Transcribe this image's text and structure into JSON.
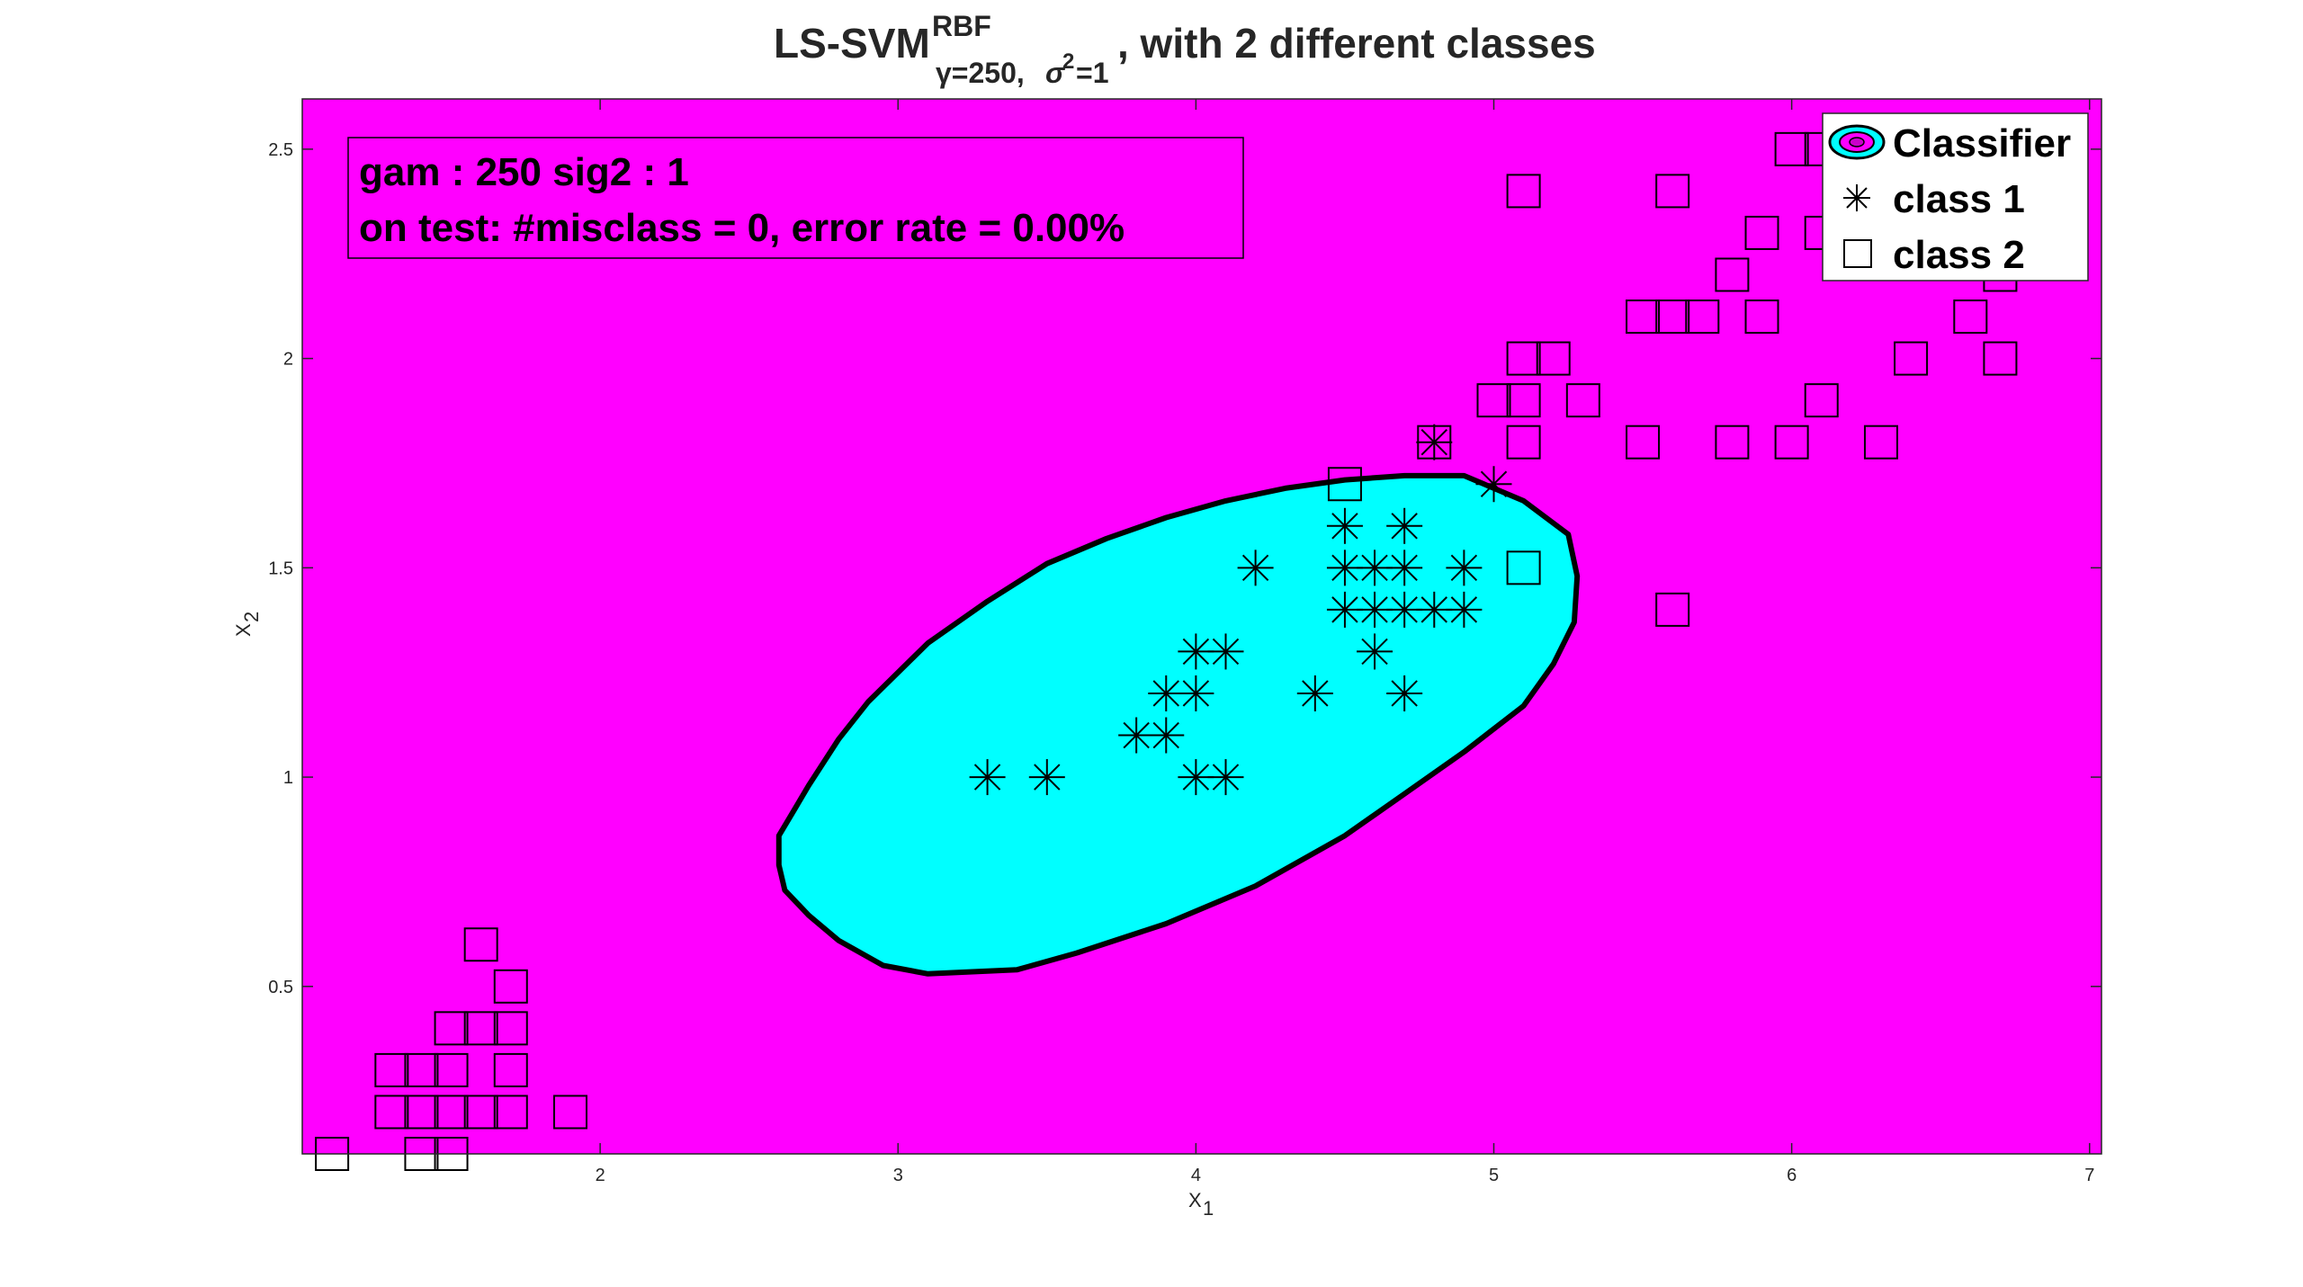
{
  "colors": {
    "background_region": "#ff00ff",
    "classifier_region": "#00ffff",
    "boundary": "#000000",
    "marker": "#000000"
  },
  "chart_data": {
    "type": "scatter",
    "title": {
      "main": "LS-SVM",
      "superscript": "RBF",
      "subscript_gamma": "γ=250,",
      "subscript_sigma": "σ",
      "subscript_sigma_exp": "2",
      "subscript_tail": "=1",
      "suffix": ", with 2 different classes"
    },
    "xlabel": "X",
    "xlabel_sub": "1",
    "ylabel": "X",
    "ylabel_sub": "2",
    "xlim": [
      1.0,
      7.04
    ],
    "ylim": [
      0.1,
      2.62
    ],
    "xticks": [
      "2",
      "3",
      "4",
      "5",
      "6",
      "7"
    ],
    "yticks": [
      "0.5",
      "1",
      "1.5",
      "2",
      "2.5"
    ],
    "info_box": {
      "line1": "gam : 250   sig2 : 1",
      "line2": "on test: #misclass = 0, error rate = 0.00%"
    },
    "legend": {
      "position": "top-right",
      "items": [
        "Classifier",
        "class 1",
        "class 2"
      ]
    },
    "decision_boundary": [
      [
        2.6,
        0.79
      ],
      [
        2.6,
        0.86
      ],
      [
        2.65,
        0.92
      ],
      [
        2.7,
        0.98
      ],
      [
        2.8,
        1.09
      ],
      [
        2.9,
        1.18
      ],
      [
        3.1,
        1.32
      ],
      [
        3.3,
        1.42
      ],
      [
        3.5,
        1.51
      ],
      [
        3.7,
        1.57
      ],
      [
        3.9,
        1.62
      ],
      [
        4.1,
        1.66
      ],
      [
        4.3,
        1.69
      ],
      [
        4.5,
        1.71
      ],
      [
        4.7,
        1.72
      ],
      [
        4.9,
        1.72
      ],
      [
        5.1,
        1.66
      ],
      [
        5.25,
        1.58
      ],
      [
        5.28,
        1.48
      ],
      [
        5.27,
        1.37
      ],
      [
        5.2,
        1.27
      ],
      [
        5.1,
        1.17
      ],
      [
        4.9,
        1.06
      ],
      [
        4.7,
        0.96
      ],
      [
        4.5,
        0.86
      ],
      [
        4.2,
        0.74
      ],
      [
        3.9,
        0.65
      ],
      [
        3.6,
        0.58
      ],
      [
        3.4,
        0.54
      ],
      [
        3.1,
        0.53
      ],
      [
        2.95,
        0.55
      ],
      [
        2.8,
        0.61
      ],
      [
        2.7,
        0.67
      ],
      [
        2.62,
        0.73
      ]
    ],
    "series": [
      {
        "name": "class 1",
        "marker": "asterisk",
        "points": [
          [
            3.3,
            1.0
          ],
          [
            3.5,
            1.0
          ],
          [
            3.8,
            1.1
          ],
          [
            3.9,
            1.1
          ],
          [
            3.9,
            1.2
          ],
          [
            4.0,
            1.2
          ],
          [
            4.0,
            1.3
          ],
          [
            4.1,
            1.3
          ],
          [
            4.0,
            1.0
          ],
          [
            4.1,
            1.0
          ],
          [
            4.2,
            1.5
          ],
          [
            4.4,
            1.2
          ],
          [
            4.5,
            1.6
          ],
          [
            4.5,
            1.5
          ],
          [
            4.5,
            1.4
          ],
          [
            4.6,
            1.5
          ],
          [
            4.6,
            1.4
          ],
          [
            4.6,
            1.3
          ],
          [
            4.7,
            1.6
          ],
          [
            4.7,
            1.5
          ],
          [
            4.7,
            1.4
          ],
          [
            4.7,
            1.2
          ],
          [
            4.8,
            1.4
          ],
          [
            4.9,
            1.5
          ],
          [
            4.9,
            1.4
          ],
          [
            4.8,
            1.8
          ],
          [
            5.0,
            1.7
          ]
        ]
      },
      {
        "name": "class 2",
        "marker": "square",
        "points": [
          [
            1.1,
            0.1
          ],
          [
            1.4,
            0.1
          ],
          [
            1.5,
            0.1
          ],
          [
            1.3,
            0.2
          ],
          [
            1.4,
            0.2
          ],
          [
            1.5,
            0.2
          ],
          [
            1.6,
            0.2
          ],
          [
            1.7,
            0.2
          ],
          [
            1.9,
            0.2
          ],
          [
            1.3,
            0.3
          ],
          [
            1.4,
            0.3
          ],
          [
            1.5,
            0.3
          ],
          [
            1.7,
            0.3
          ],
          [
            1.5,
            0.4
          ],
          [
            1.6,
            0.4
          ],
          [
            1.7,
            0.4
          ],
          [
            1.7,
            0.5
          ],
          [
            1.6,
            0.6
          ],
          [
            4.5,
            1.7
          ],
          [
            5.1,
            1.5
          ],
          [
            5.6,
            1.4
          ],
          [
            4.8,
            1.8
          ],
          [
            5.1,
            1.8
          ],
          [
            5.5,
            1.8
          ],
          [
            5.8,
            1.8
          ],
          [
            6.0,
            1.8
          ],
          [
            6.3,
            1.8
          ],
          [
            5.0,
            1.9
          ],
          [
            5.1,
            1.9
          ],
          [
            5.3,
            1.9
          ],
          [
            6.1,
            1.9
          ],
          [
            5.1,
            2.0
          ],
          [
            5.2,
            2.0
          ],
          [
            6.4,
            2.0
          ],
          [
            6.7,
            2.0
          ],
          [
            5.5,
            2.1
          ],
          [
            5.6,
            2.1
          ],
          [
            5.7,
            2.1
          ],
          [
            5.9,
            2.1
          ],
          [
            6.6,
            2.1
          ],
          [
            6.7,
            2.2
          ],
          [
            5.8,
            2.2
          ],
          [
            5.9,
            2.3
          ],
          [
            6.1,
            2.3
          ],
          [
            5.1,
            2.4
          ],
          [
            5.6,
            2.4
          ],
          [
            6.0,
            2.5
          ],
          [
            6.1,
            2.5
          ]
        ]
      }
    ]
  }
}
